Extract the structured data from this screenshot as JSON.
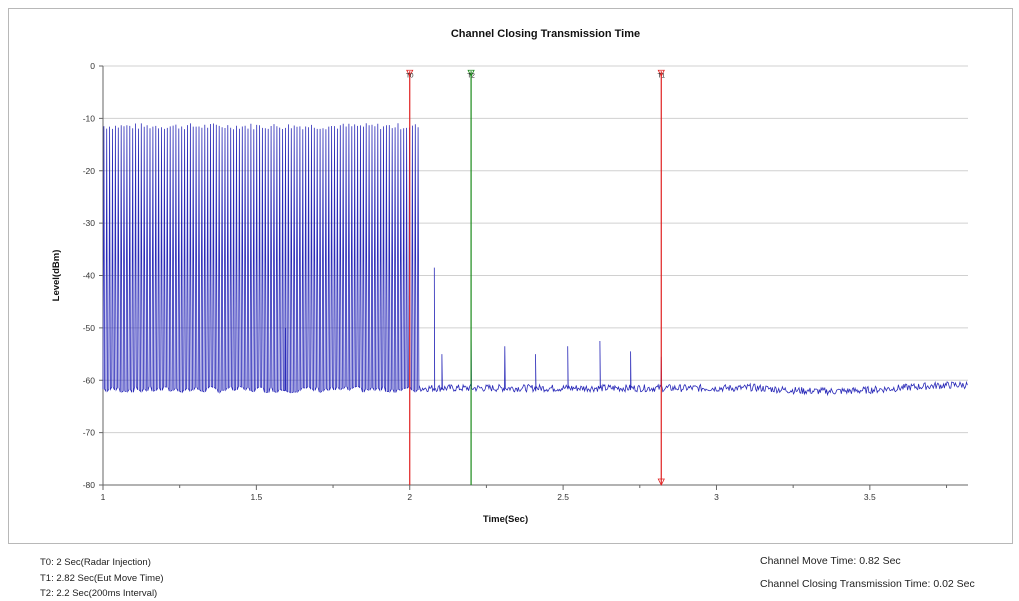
{
  "chart_data": {
    "type": "line",
    "title": "Channel Closing Transmission Time",
    "xlabel": "Time(Sec)",
    "ylabel": "Level(dBm)",
    "xlim": [
      1,
      3.82
    ],
    "ylim": [
      -80,
      0
    ],
    "x_ticks": [
      1,
      1.5,
      2,
      2.5,
      3,
      3.5
    ],
    "y_ticks": [
      0,
      -10,
      -20,
      -30,
      -40,
      -50,
      -60,
      -70,
      -80
    ],
    "grid": "horizontal",
    "series": [
      {
        "color": "#2a2ab8",
        "burst": {
          "x_start": 1.0,
          "x_end": 2.03,
          "high": -11.5,
          "low": -62,
          "period": 0.0094
        },
        "noise_floor": -61.5,
        "peaks": [
          {
            "x": 1.595,
            "y": -50
          },
          {
            "x": 2.08,
            "y": -38.5
          },
          {
            "x": 2.105,
            "y": -55
          },
          {
            "x": 2.2,
            "y": -52
          },
          {
            "x": 2.31,
            "y": -53.5
          },
          {
            "x": 2.41,
            "y": -55
          },
          {
            "x": 2.515,
            "y": -53.5
          },
          {
            "x": 2.62,
            "y": -52.5
          },
          {
            "x": 2.72,
            "y": -54.5
          },
          {
            "x": 2.82,
            "y": -55.5
          }
        ]
      }
    ],
    "markers": [
      {
        "label": "T0",
        "x": 2.0,
        "color": "#e02020"
      },
      {
        "label": "T2",
        "x": 2.2,
        "color": "#1a8a1a"
      },
      {
        "label": "T1",
        "x": 2.82,
        "color": "#e02020"
      }
    ]
  },
  "footer": {
    "t0": "T0: 2 Sec(Radar Injection)",
    "t1": "T1: 2.82 Sec(Eut Move Time)",
    "t2": "T2: 2.2 Sec(200ms Interval)",
    "move_time": "Channel Move Time: 0.82 Sec",
    "closing_time": "Channel Closing Transmission Time: 0.02 Sec"
  }
}
